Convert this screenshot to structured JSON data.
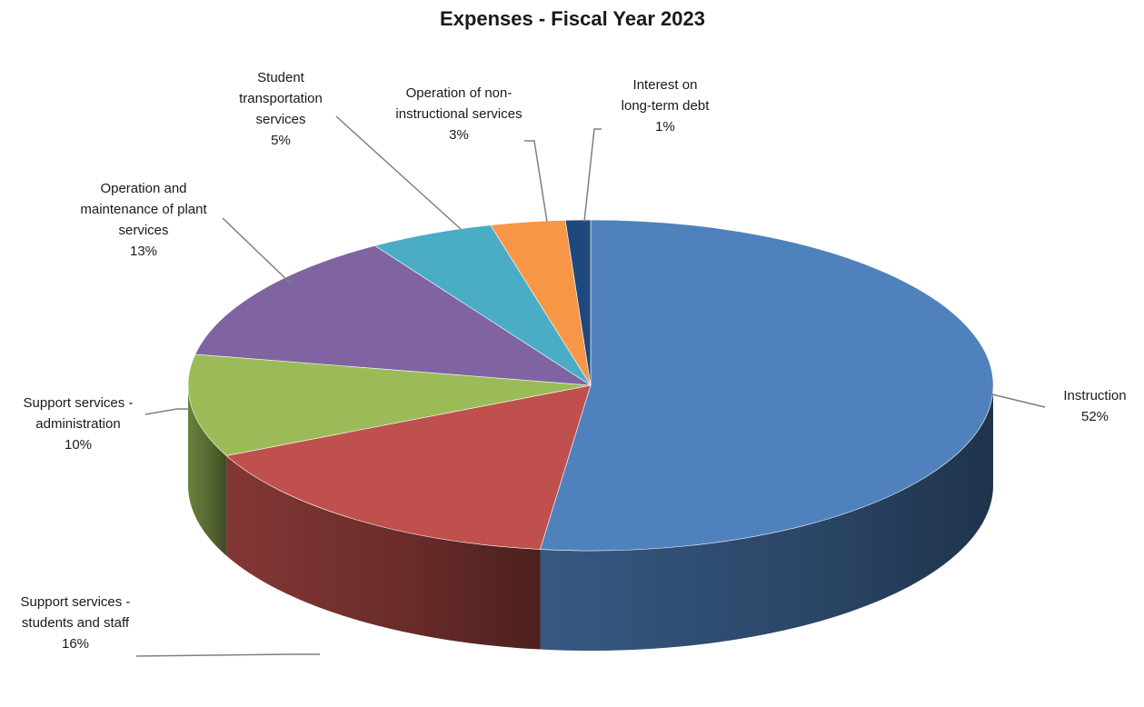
{
  "chart_data": {
    "type": "pie",
    "title": "Expenses - Fiscal Year 2023",
    "slices": [
      {
        "name": "Instruction",
        "label_lines": [
          "Instruction"
        ],
        "value": 52,
        "display": "52%",
        "color": "#4F81BD"
      },
      {
        "name": "Support services - students and staff",
        "label_lines": [
          "Support services -",
          "students and staff"
        ],
        "value": 16,
        "display": "16%",
        "color": "#C0504D"
      },
      {
        "name": "Support services - administration",
        "label_lines": [
          "Support services -",
          "administration"
        ],
        "value": 10,
        "display": "10%",
        "color": "#9BBB59"
      },
      {
        "name": "Operation and maintenance of plant services",
        "label_lines": [
          "Operation and",
          "maintenance of plant",
          "services"
        ],
        "value": 13,
        "display": "13%",
        "color": "#8064A2"
      },
      {
        "name": "Student transportation services",
        "label_lines": [
          "Student",
          "transportation",
          "services"
        ],
        "value": 5,
        "display": "5%",
        "color": "#4BACC6"
      },
      {
        "name": "Operation of non-instructional services",
        "label_lines": [
          "Operation of non-",
          "instructional services"
        ],
        "value": 3,
        "display": "3%",
        "color": "#F79646"
      },
      {
        "name": "Interest on long-term debt",
        "label_lines": [
          "Interest on",
          "long-term debt"
        ],
        "value": 1,
        "display": "1%",
        "color": "#1F497D"
      }
    ],
    "legend": "none",
    "style": "3d-pie"
  }
}
